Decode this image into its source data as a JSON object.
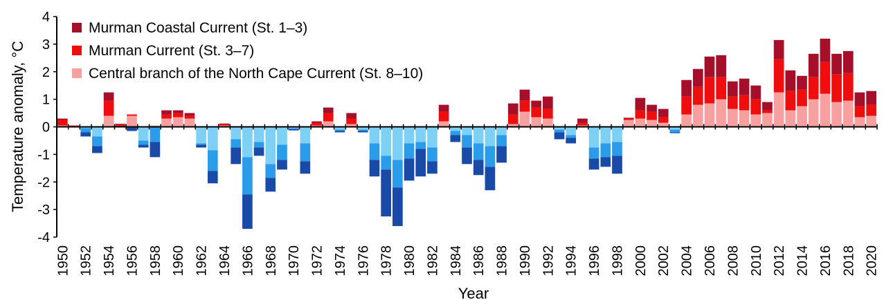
{
  "chart_data": {
    "type": "bar",
    "stacked": "positive and negative values stacked separately from zero",
    "title": "",
    "xlabel": "Year",
    "ylabel": "Temperature anomaly, °C",
    "ylim": [
      -4,
      4
    ],
    "yticks": [
      4,
      3,
      2,
      1,
      0,
      -1,
      -2,
      -3,
      -4
    ],
    "xtick_labels": [
      "1950",
      "1952",
      "1954",
      "1956",
      "1958",
      "1960",
      "1962",
      "1964",
      "1966",
      "1968",
      "1970",
      "1972",
      "1974",
      "1976",
      "1978",
      "1980",
      "1982",
      "1984",
      "1986",
      "1988",
      "1990",
      "1992",
      "1994",
      "1996",
      "1998",
      "2000",
      "2002",
      "2004",
      "2006",
      "2008",
      "2010",
      "2012",
      "2014",
      "2016",
      "2018",
      "2020"
    ],
    "legend_position": "top-left",
    "grid": false,
    "categories": [
      1950,
      1951,
      1952,
      1953,
      1954,
      1955,
      1956,
      1957,
      1958,
      1959,
      1960,
      1961,
      1962,
      1963,
      1964,
      1965,
      1966,
      1967,
      1968,
      1969,
      1970,
      1971,
      1972,
      1973,
      1974,
      1975,
      1976,
      1977,
      1978,
      1979,
      1980,
      1981,
      1982,
      1983,
      1984,
      1985,
      1986,
      1987,
      1988,
      1989,
      1990,
      1991,
      1992,
      1993,
      1994,
      1995,
      1996,
      1997,
      1998,
      1999,
      2000,
      2001,
      2002,
      2003,
      2004,
      2005,
      2006,
      2007,
      2008,
      2009,
      2010,
      2011,
      2012,
      2013,
      2014,
      2015,
      2016,
      2017,
      2018,
      2019,
      2020
    ],
    "series": [
      {
        "name": "Central branch of the North Cape Current (St. 8–10)",
        "positive_color": "#f8a0a0",
        "negative_color": "#7fd0f5",
        "values": [
          0.05,
          0,
          -0.05,
          -0.35,
          0.4,
          0,
          0.4,
          -0.5,
          0.05,
          0.3,
          0.35,
          0.3,
          -0.6,
          -0.85,
          0.05,
          -0.45,
          -1.1,
          -0.55,
          -1.35,
          -0.65,
          -0.05,
          -0.6,
          0.05,
          0.2,
          -0.1,
          0.1,
          -0.1,
          -0.6,
          -1.05,
          -1.2,
          -0.6,
          -0.55,
          -0.75,
          0.2,
          -0.15,
          -0.3,
          -0.6,
          -0.7,
          -0.3,
          0.1,
          0.55,
          0.35,
          0.3,
          -0.1,
          -0.3,
          0.05,
          -0.75,
          -0.6,
          -0.55,
          0.25,
          0.3,
          0.25,
          0.15,
          -0.1,
          0.45,
          0.8,
          0.85,
          1.0,
          0.65,
          0.6,
          0.45,
          0.5,
          1.25,
          0.6,
          0.75,
          1.0,
          1.2,
          0.9,
          0.95,
          0.35,
          0.4
        ]
      },
      {
        "name": "Murman Current (St. 3–7)",
        "positive_color": "#ee0e0e",
        "negative_color": "#2b9ce9",
        "values": [
          0.2,
          0.05,
          -0.15,
          -0.35,
          0.55,
          0.08,
          0.05,
          -0.15,
          -0.55,
          0.15,
          0.15,
          0.1,
          -0.05,
          -0.75,
          0.05,
          -0.3,
          -1.35,
          -0.2,
          -0.5,
          -0.55,
          -0.03,
          -0.65,
          0.1,
          0.3,
          -0.05,
          0.2,
          -0.05,
          -0.6,
          -0.5,
          -1.0,
          -0.55,
          -0.25,
          -0.5,
          0.35,
          -0.15,
          -0.45,
          -0.6,
          -0.75,
          -0.4,
          0.35,
          0.4,
          0.35,
          0.35,
          -0.1,
          -0.1,
          0.1,
          -0.4,
          -0.5,
          -0.5,
          0.05,
          0.3,
          0.3,
          0.2,
          -0.1,
          0.65,
          0.65,
          0.95,
          0.8,
          0.45,
          0.55,
          0.55,
          0.1,
          1.2,
          0.7,
          0.6,
          0.8,
          1.15,
          1.0,
          1.0,
          0.4,
          0.4
        ]
      },
      {
        "name": "Murman Coastal Current (St. 1–3)",
        "positive_color": "#a50f2a",
        "negative_color": "#1a4aa8",
        "values": [
          0.05,
          0,
          -0.15,
          -0.25,
          0.3,
          0.03,
          -0.15,
          -0.1,
          -0.55,
          0.15,
          0.1,
          0.1,
          -0.1,
          -0.45,
          0.02,
          -0.6,
          -1.25,
          -0.3,
          -0.5,
          -0.35,
          -0.05,
          -0.45,
          0.05,
          0.2,
          -0.05,
          0.2,
          -0.05,
          -0.6,
          -1.7,
          -1.4,
          -0.8,
          -1.0,
          -0.45,
          0.25,
          -0.25,
          -0.6,
          -0.55,
          -0.85,
          -0.6,
          0.4,
          0.4,
          0.25,
          0.45,
          -0.25,
          -0.2,
          0.15,
          -0.4,
          -0.35,
          -0.65,
          0.03,
          0.45,
          0.25,
          0.3,
          -0.03,
          0.6,
          0.65,
          0.75,
          0.8,
          0.55,
          0.6,
          0.5,
          0.3,
          0.7,
          0.75,
          0.5,
          0.85,
          0.85,
          0.75,
          0.8,
          0.5,
          0.5
        ]
      }
    ]
  }
}
